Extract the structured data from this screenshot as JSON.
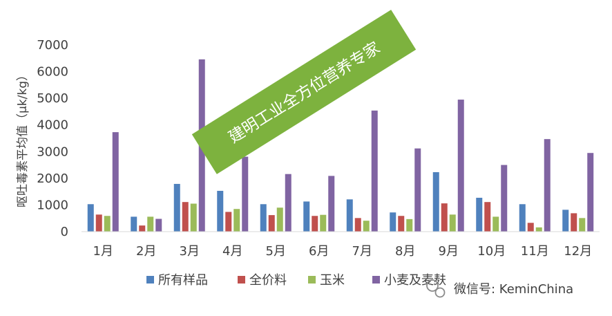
{
  "chart_data": {
    "type": "bar",
    "categories": [
      "1月",
      "2月",
      "3月",
      "4月",
      "5月",
      "6月",
      "7月",
      "8月",
      "9月",
      "10月",
      "11月",
      "12月"
    ],
    "series": [
      {
        "name": "所有样品",
        "color": "#4f81bd",
        "values": [
          1030,
          560,
          1790,
          1530,
          1030,
          1130,
          1210,
          720,
          2230,
          1270,
          1030,
          820
        ]
      },
      {
        "name": "全价料",
        "color": "#c0504d",
        "values": [
          640,
          230,
          1110,
          740,
          620,
          590,
          510,
          590,
          1060,
          1110,
          330,
          690
        ]
      },
      {
        "name": "玉米",
        "color": "#9bbb59",
        "values": [
          590,
          560,
          1050,
          850,
          900,
          630,
          410,
          470,
          640,
          560,
          160,
          510
        ]
      },
      {
        "name": "小麦及麦麸",
        "color": "#8064a2",
        "values": [
          3730,
          480,
          6460,
          2810,
          2160,
          2090,
          4540,
          3120,
          4950,
          2500,
          3470,
          2950
        ]
      }
    ],
    "ylabel": "呕吐毒素平均值（μk/kg）",
    "ylim": [
      0,
      7000
    ],
    "yticks": [
      0,
      1000,
      2000,
      3000,
      4000,
      5000,
      6000,
      7000
    ],
    "legend": "bottom"
  },
  "banner": {
    "text": "建明工业全方位营养专家",
    "color": "#7db23e"
  },
  "watermark": {
    "text": "微信号: KeminChina",
    "icon": "wechat-icon"
  }
}
